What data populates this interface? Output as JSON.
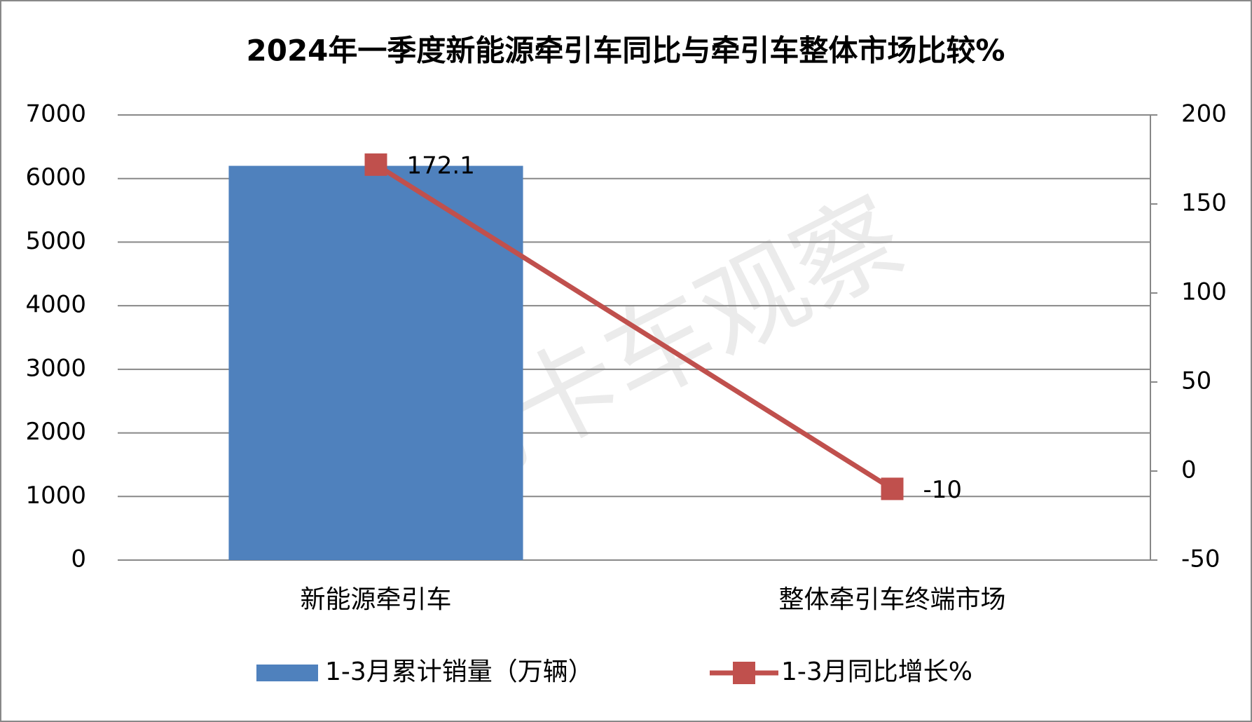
{
  "chart_data": {
    "type": "bar_line",
    "title": "2024年一季度新能源牵引车同比与牵引车整体市场比较%",
    "watermark": "电动卡车观察",
    "categories": [
      "新能源牵引车",
      "整体牵引车终端市场"
    ],
    "series": [
      {
        "name": "1-3月累计销量（万辆）",
        "type": "bar",
        "color": "#4f81bd",
        "values": [
          6200,
          null
        ]
      },
      {
        "name": "1-3月同比增长%",
        "type": "line",
        "axis": "y2",
        "color": "#c0504d",
        "values": [
          172.1,
          -10
        ],
        "data_labels": true
      }
    ],
    "ylim": [
      0,
      7000
    ],
    "yticks": [
      0,
      1000,
      2000,
      3000,
      4000,
      5000,
      6000,
      7000
    ],
    "y2lim": [
      -50,
      200
    ],
    "y2ticks": [
      -50,
      0,
      50,
      100,
      150,
      200
    ],
    "grid": true,
    "legend": "bottom"
  }
}
